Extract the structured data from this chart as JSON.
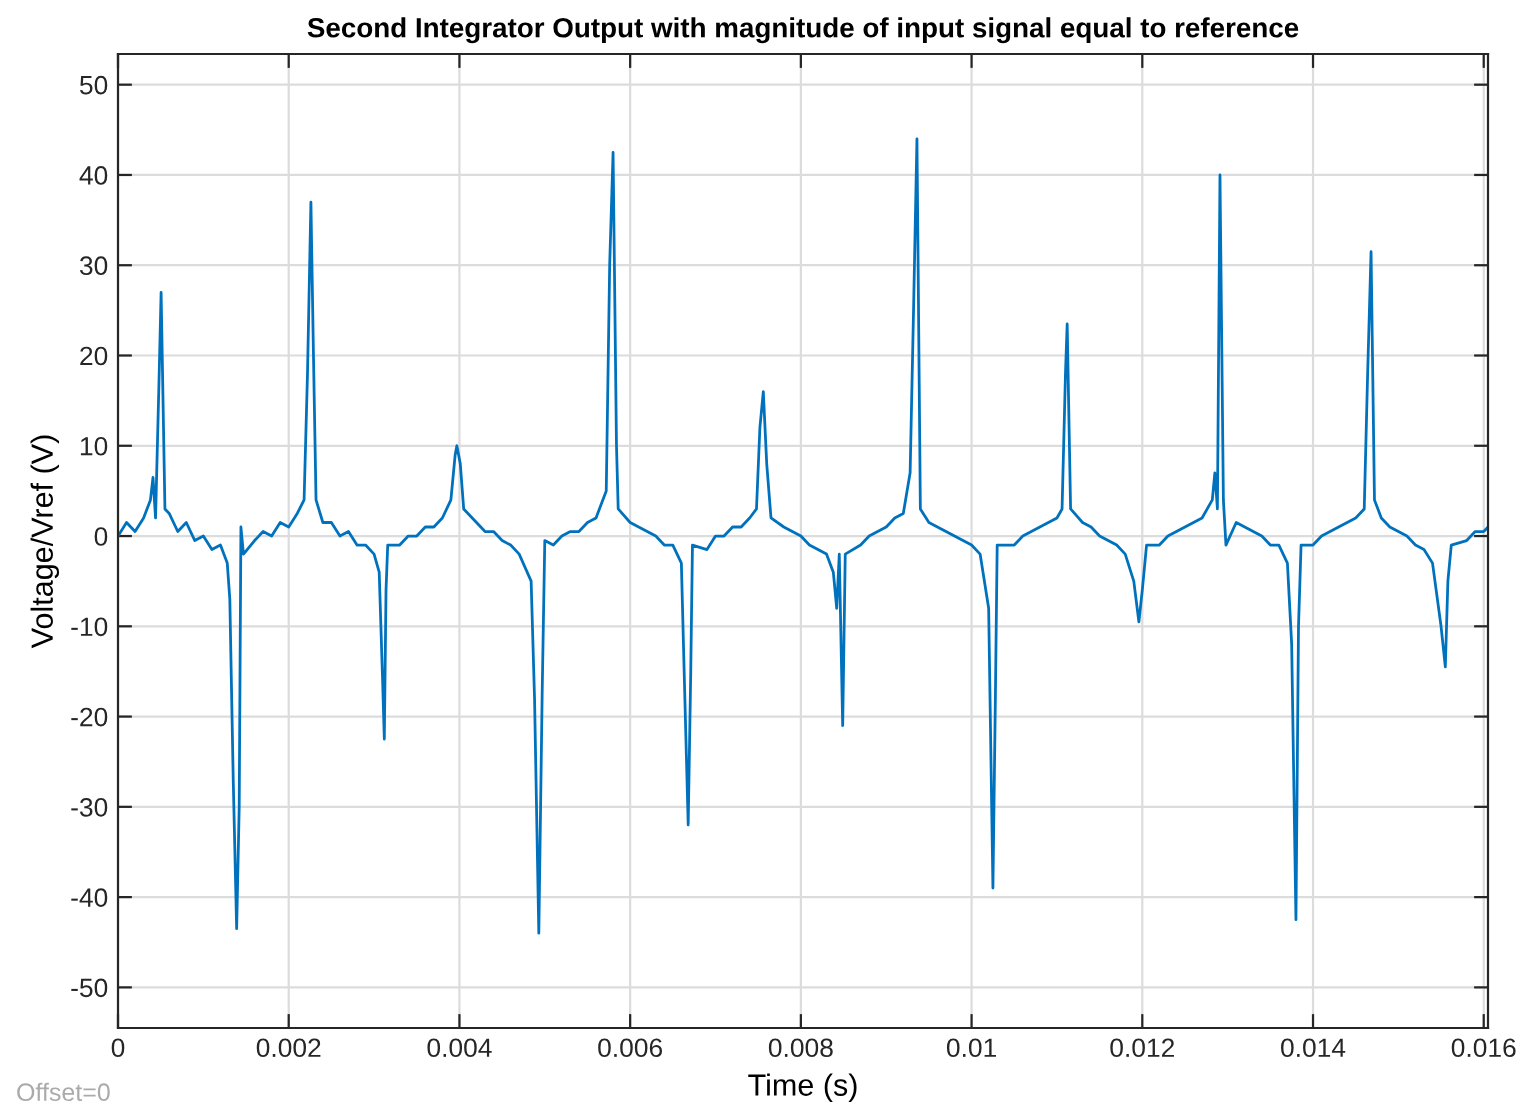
{
  "chart_data": {
    "type": "line",
    "title": "Second Integrator Output with magnitude of input signal equal to reference",
    "xlabel": "Time (s)",
    "ylabel": "Voltage/Vref (V)",
    "xlim": [
      0,
      0.01605
    ],
    "ylim": [
      -54.5,
      53.4
    ],
    "xticks": [
      0,
      0.002,
      0.004,
      0.006,
      0.008,
      0.01,
      0.012,
      0.014,
      0.016
    ],
    "yticks": [
      -50,
      -40,
      -30,
      -20,
      -10,
      0,
      10,
      20,
      30,
      40,
      50
    ],
    "grid": true,
    "legend": false,
    "line_style": "solid",
    "marker": "none",
    "annotations": [
      "Offset=0"
    ],
    "series": [
      {
        "color": "#0072bd",
        "x": [
          0,
          0.0001,
          0.0002,
          0.0003,
          0.00038,
          0.00041,
          0.00044,
          0.00048,
          0.000505,
          0.00052,
          0.00055,
          0.0006,
          0.0007,
          0.0008,
          0.0009,
          0.001,
          0.0011,
          0.0012,
          0.00128,
          0.00131,
          0.00135,
          0.00139,
          0.00142,
          0.00144,
          0.00147,
          0.0016,
          0.0017,
          0.0018,
          0.0019,
          0.002,
          0.0021,
          0.00218,
          0.00222,
          0.00226,
          0.00229,
          0.00232,
          0.0024,
          0.0025,
          0.0026,
          0.0027,
          0.0028,
          0.0029,
          0.003,
          0.00306,
          0.0031,
          0.00312,
          0.00314,
          0.00316,
          0.0033,
          0.0034,
          0.0035,
          0.0036,
          0.0037,
          0.0038,
          0.0039,
          0.00395,
          0.00397,
          0.00401,
          0.00405,
          0.0042,
          0.0043,
          0.0044,
          0.0045,
          0.0046,
          0.0047,
          0.00484,
          0.00488,
          0.00493,
          0.00497,
          0.005,
          0.0051,
          0.0052,
          0.0053,
          0.0054,
          0.0055,
          0.0056,
          0.00572,
          0.00576,
          0.0058,
          0.00584,
          0.00586,
          0.006,
          0.0061,
          0.0062,
          0.0063,
          0.0064,
          0.0065,
          0.0066,
          0.00663,
          0.00668,
          0.00671,
          0.00673,
          0.0069,
          0.007,
          0.0071,
          0.0072,
          0.0073,
          0.0074,
          0.00748,
          0.00752,
          0.00756,
          0.0076,
          0.00765,
          0.0078,
          0.0079,
          0.008,
          0.0081,
          0.0082,
          0.0083,
          0.00838,
          0.00842,
          0.00845,
          0.00849,
          0.00852,
          0.0087,
          0.0088,
          0.0089,
          0.009,
          0.0091,
          0.0092,
          0.00928,
          0.00932,
          0.00936,
          0.0094,
          0.0095,
          0.0096,
          0.0097,
          0.0098,
          0.0099,
          0.01,
          0.0101,
          0.0102,
          0.01025,
          0.01028,
          0.0103,
          0.0105,
          0.0106,
          0.0107,
          0.0108,
          0.0109,
          0.011,
          0.01106,
          0.0111,
          0.01112,
          0.01116,
          0.0113,
          0.0114,
          0.0115,
          0.0116,
          0.0117,
          0.0118,
          0.0119,
          0.01196,
          0.012,
          0.01205,
          0.0122,
          0.0123,
          0.0124,
          0.0125,
          0.0126,
          0.0127,
          0.01282,
          0.01285,
          0.01288,
          0.01291,
          0.01295,
          0.01298,
          0.0131,
          0.0132,
          0.0133,
          0.0134,
          0.0135,
          0.0136,
          0.0137,
          0.01375,
          0.0138,
          0.01383,
          0.01386,
          0.014,
          0.0141,
          0.0142,
          0.0143,
          0.0144,
          0.0145,
          0.0146,
          0.01464,
          0.01468,
          0.01472,
          0.0148,
          0.0149,
          0.015,
          0.0151,
          0.0152,
          0.0153,
          0.0154,
          0.0155,
          0.01555,
          0.01558,
          0.01562,
          0.0158,
          0.0159,
          0.016,
          0.01605
        ],
        "values": [
          0,
          1.5,
          0.5,
          2,
          4,
          6.5,
          2,
          17,
          27,
          19,
          3,
          2.5,
          0.5,
          1.5,
          -0.5,
          0,
          -1.5,
          -1,
          -3,
          -7,
          -27,
          -43.5,
          -30,
          1,
          -2,
          -0.5,
          0.5,
          0,
          1.5,
          1,
          2.5,
          4,
          18,
          37,
          20,
          4,
          1.5,
          1.5,
          0,
          0.5,
          -1,
          -1,
          -2,
          -4,
          -16,
          -22.5,
          -6,
          -1,
          -1,
          0,
          0,
          1,
          1,
          2,
          4,
          9,
          10,
          8,
          3,
          1.5,
          0.5,
          0.5,
          -0.5,
          -1,
          -2,
          -5,
          -18,
          -44,
          -17,
          -0.5,
          -1,
          0,
          0.5,
          0.5,
          1.5,
          2,
          5,
          30,
          42.5,
          10,
          3,
          1.5,
          1,
          0.5,
          0,
          -1,
          -1,
          -3,
          -14,
          -32,
          -15,
          -1,
          -1.5,
          0,
          0,
          1,
          1,
          2,
          3,
          12,
          16,
          8,
          2,
          1,
          0.5,
          0,
          -1,
          -1.5,
          -2,
          -4,
          -8,
          -2,
          -21,
          -2,
          -1,
          0,
          0.5,
          1,
          2,
          2.5,
          7,
          25,
          44,
          3,
          1.5,
          1,
          0.5,
          0,
          -0.5,
          -1,
          -2,
          -8,
          -39,
          -17,
          -1,
          -1,
          0,
          0.5,
          1,
          1.5,
          2,
          3,
          18,
          23.5,
          3,
          1.5,
          1,
          0,
          -0.5,
          -1,
          -2,
          -5,
          -9.5,
          -6,
          -1,
          -1,
          0,
          0.5,
          1,
          1.5,
          2,
          4,
          7,
          3,
          40,
          4,
          -1,
          1.5,
          1,
          0.5,
          0,
          -1,
          -1,
          -3,
          -12,
          -42.5,
          -10,
          -1,
          -1,
          0,
          0.5,
          1,
          1.5,
          2,
          3,
          18,
          31.5,
          4,
          2,
          1,
          0.5,
          0,
          -1,
          -1.5,
          -3,
          -10,
          -14.5,
          -5,
          -1,
          -0.5,
          0.5,
          0.5,
          1
        ]
      }
    ]
  }
}
